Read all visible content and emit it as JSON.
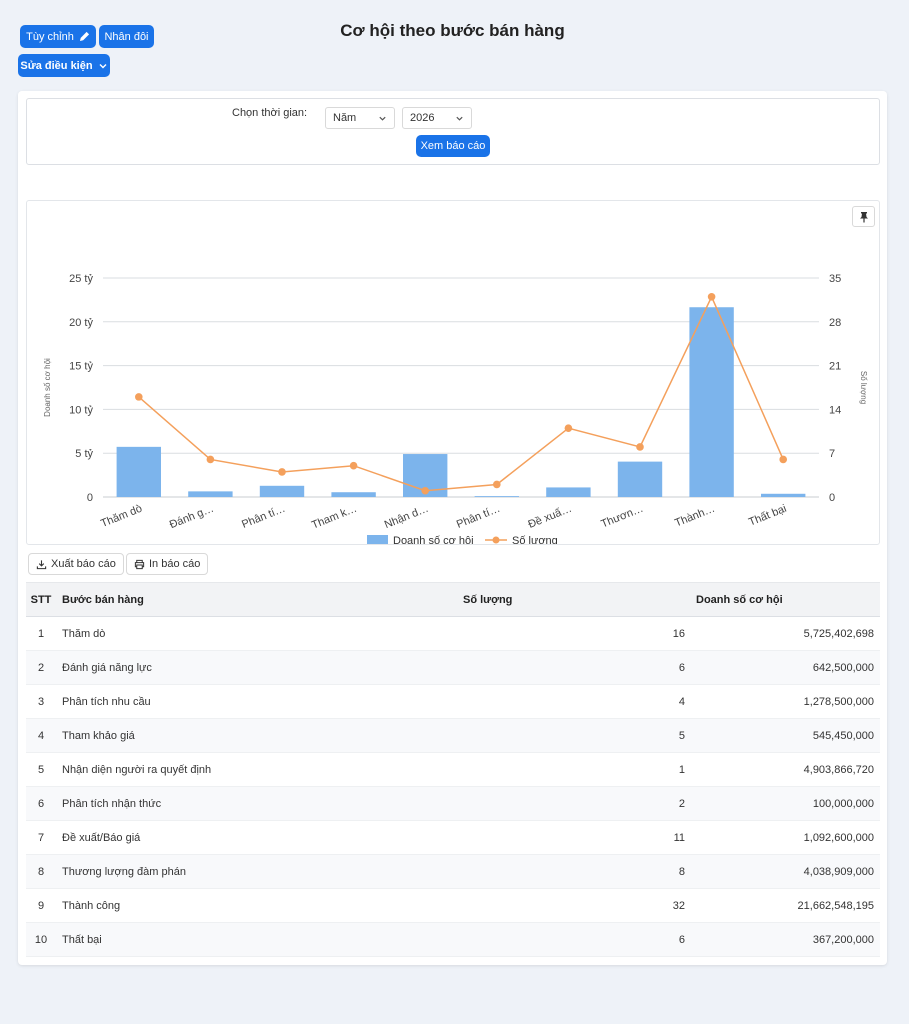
{
  "toolbar": {
    "customize_label": "Tùy chỉnh",
    "duplicate_label": "Nhân đôi",
    "edit_condition_label": "Sửa điều kiện"
  },
  "page_title": "Cơ hội theo bước bán hàng",
  "filter": {
    "label": "Chọn thời gian:",
    "period_type": "Năm",
    "year": "2026",
    "submit_label": "Xem báo cáo"
  },
  "actions": {
    "export_label": "Xuất báo cáo",
    "print_label": "In báo cáo"
  },
  "chart_data": {
    "type": "bar",
    "categories": [
      "Thăm dò",
      "Đánh g…",
      "Phân tí…",
      "Tham k…",
      "Nhận d…",
      "Phân tí…",
      "Đề xuấ…",
      "Thươn…",
      "Thành…",
      "Thất bại"
    ],
    "series": [
      {
        "name": "Doanh số cơ hội",
        "type": "bar",
        "axis": "left",
        "color": "#7cb4ec",
        "values": [
          5.725,
          0.6425,
          1.2785,
          0.54545,
          4.9039,
          0.1,
          1.0926,
          4.0389,
          21.6625,
          0.3672
        ]
      },
      {
        "name": "Số lượng",
        "type": "line",
        "axis": "right",
        "color": "#f4a05c",
        "values": [
          16,
          6,
          4,
          5,
          1,
          2,
          11,
          8,
          32,
          6
        ]
      }
    ],
    "y_left": {
      "ticks": [
        "0",
        "5 tỷ",
        "10 tỷ",
        "15 tỷ",
        "20 tỷ",
        "25 tỷ"
      ],
      "max": 25,
      "label": "Doanh số cơ hội"
    },
    "y_right": {
      "ticks": [
        "0",
        "7",
        "14",
        "21",
        "28",
        "35"
      ],
      "max": 35,
      "label": "Số lượng"
    },
    "grid": true,
    "legend": "bottom"
  },
  "table": {
    "headers": {
      "stt": "STT",
      "step": "Bước bán hàng",
      "qty": "Số lượng",
      "amount": "Doanh số cơ hội"
    },
    "rows": [
      {
        "stt": "1",
        "step": "Thăm dò",
        "qty": "16",
        "amount": "5,725,402,698"
      },
      {
        "stt": "2",
        "step": "Đánh giá năng lực",
        "qty": "6",
        "amount": "642,500,000"
      },
      {
        "stt": "3",
        "step": "Phân tích nhu cầu",
        "qty": "4",
        "amount": "1,278,500,000"
      },
      {
        "stt": "4",
        "step": "Tham khảo giá",
        "qty": "5",
        "amount": "545,450,000"
      },
      {
        "stt": "5",
        "step": "Nhận diện người ra quyết định",
        "qty": "1",
        "amount": "4,903,866,720"
      },
      {
        "stt": "6",
        "step": "Phân tích nhận thức",
        "qty": "2",
        "amount": "100,000,000"
      },
      {
        "stt": "7",
        "step": "Đề xuất/Báo giá",
        "qty": "11",
        "amount": "1,092,600,000"
      },
      {
        "stt": "8",
        "step": "Thương lượng đàm phán",
        "qty": "8",
        "amount": "4,038,909,000"
      },
      {
        "stt": "9",
        "step": "Thành công",
        "qty": "32",
        "amount": "21,662,548,195"
      },
      {
        "stt": "10",
        "step": "Thất bại",
        "qty": "6",
        "amount": "367,200,000"
      }
    ]
  }
}
